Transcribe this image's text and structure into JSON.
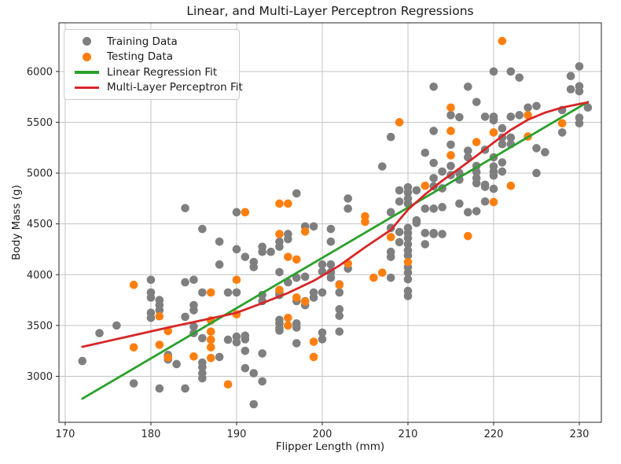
{
  "chart_data": {
    "type": "scatter",
    "title": "Linear, and Multi-Layer Perceptron Regressions",
    "xlabel": "Flipper Length (mm)",
    "ylabel": "Body Mass (g)",
    "xlim": [
      169.27,
      232.57
    ],
    "ylim": [
      2547,
      6479
    ],
    "xticks": [
      170,
      180,
      190,
      200,
      210,
      220,
      230
    ],
    "yticks": [
      3000,
      3500,
      4000,
      4500,
      5000,
      5500,
      6000
    ],
    "grid": true,
    "legend_position": "upper-left",
    "style": {
      "grid_color": "#c3c3c3",
      "axis_color": "#262626",
      "background": "#ffffff",
      "marker_radius": 5.3,
      "line_width": 2.8
    },
    "series": [
      {
        "name": "Training Data",
        "kind": "scatter",
        "color": "#7f7f7f",
        "points": [
          [
            172,
            3150
          ],
          [
            174,
            3425
          ],
          [
            176,
            3500
          ],
          [
            178,
            2930
          ],
          [
            181,
            2880
          ],
          [
            184,
            2880
          ],
          [
            186,
            3030
          ],
          [
            186,
            2980
          ],
          [
            192,
            2725
          ],
          [
            193,
            2950
          ],
          [
            182,
            3210
          ],
          [
            182,
            3165
          ],
          [
            183,
            3120
          ],
          [
            186,
            3135
          ],
          [
            186,
            3090
          ],
          [
            188,
            3190
          ],
          [
            186,
            3375
          ],
          [
            189,
            3360
          ],
          [
            190,
            3390
          ],
          [
            190,
            3335
          ],
          [
            191,
            3400
          ],
          [
            191,
            3365
          ],
          [
            191,
            3250
          ],
          [
            191,
            3080
          ],
          [
            192,
            3030
          ],
          [
            193,
            3225
          ],
          [
            180,
            3950
          ],
          [
            184,
            3925
          ],
          [
            185,
            3950
          ],
          [
            186,
            3825
          ],
          [
            189,
            3825
          ],
          [
            190,
            3825
          ],
          [
            180,
            3825
          ],
          [
            180,
            3775
          ],
          [
            181,
            3750
          ],
          [
            181,
            3700
          ],
          [
            181,
            3650
          ],
          [
            180,
            3625
          ],
          [
            180,
            3575
          ],
          [
            184,
            3585
          ],
          [
            185,
            3700
          ],
          [
            185,
            3650
          ],
          [
            185,
            3490
          ],
          [
            185,
            3425
          ],
          [
            184,
            4655
          ],
          [
            186,
            4450
          ],
          [
            188,
            4325
          ],
          [
            190,
            4250
          ],
          [
            188,
            4100
          ],
          [
            190,
            4615
          ],
          [
            191,
            4175
          ],
          [
            192,
            4125
          ],
          [
            192,
            4075
          ],
          [
            193,
            4275
          ],
          [
            193,
            4225
          ],
          [
            194,
            4225
          ],
          [
            195,
            4325
          ],
          [
            195,
            4275
          ],
          [
            195,
            4025
          ],
          [
            196,
            4400
          ],
          [
            196,
            4350
          ],
          [
            196,
            3925
          ],
          [
            193,
            3800
          ],
          [
            193,
            3740
          ],
          [
            195,
            3825
          ],
          [
            195,
            3800
          ],
          [
            195,
            3555
          ],
          [
            195,
            3520
          ],
          [
            195,
            3475
          ],
          [
            195,
            3450
          ],
          [
            197,
            3740
          ],
          [
            198,
            3740
          ],
          [
            198,
            3700
          ],
          [
            197,
            3520
          ],
          [
            197,
            3480
          ],
          [
            197,
            3325
          ],
          [
            197,
            3970
          ],
          [
            198,
            3980
          ],
          [
            199,
            3825
          ],
          [
            199,
            3775
          ],
          [
            200,
            3825
          ],
          [
            197,
            4800
          ],
          [
            198,
            4475
          ],
          [
            199,
            4475
          ],
          [
            200,
            4100
          ],
          [
            200,
            4030
          ],
          [
            201,
            4100
          ],
          [
            201,
            4020
          ],
          [
            201,
            3970
          ],
          [
            203,
            4060
          ],
          [
            200,
            3430
          ],
          [
            200,
            3365
          ],
          [
            202,
            3905
          ],
          [
            202,
            3825
          ],
          [
            202,
            3660
          ],
          [
            202,
            3595
          ],
          [
            202,
            3440
          ],
          [
            201,
            4450
          ],
          [
            201,
            4325
          ],
          [
            201,
            4025
          ],
          [
            203,
            4750
          ],
          [
            203,
            4650
          ],
          [
            207,
            5065
          ],
          [
            208,
            5355
          ],
          [
            208,
            4615
          ],
          [
            208,
            4460
          ],
          [
            208,
            4225
          ],
          [
            208,
            4175
          ],
          [
            208,
            3970
          ],
          [
            209,
            4830
          ],
          [
            209,
            4720
          ],
          [
            209,
            4420
          ],
          [
            209,
            4320
          ],
          [
            210,
            4860
          ],
          [
            210,
            4810
          ],
          [
            210,
            4750
          ],
          [
            210,
            4700
          ],
          [
            210,
            4460
          ],
          [
            210,
            4410
          ],
          [
            210,
            4360
          ],
          [
            210,
            4300
          ],
          [
            210,
            4240
          ],
          [
            210,
            4190
          ],
          [
            210,
            4075
          ],
          [
            210,
            4020
          ],
          [
            210,
            3955
          ],
          [
            210,
            3840
          ],
          [
            210,
            3790
          ],
          [
            211,
            4830
          ],
          [
            211,
            4535
          ],
          [
            211,
            4510
          ],
          [
            212,
            5200
          ],
          [
            212,
            4650
          ],
          [
            212,
            4410
          ],
          [
            212,
            4300
          ],
          [
            213,
            5415
          ],
          [
            213,
            5100
          ],
          [
            213,
            4950
          ],
          [
            213,
            4870
          ],
          [
            213,
            4650
          ],
          [
            213,
            4410
          ],
          [
            213,
            4400
          ],
          [
            214,
            5015
          ],
          [
            214,
            4850
          ],
          [
            214,
            4665
          ],
          [
            214,
            4400
          ],
          [
            215,
            5570
          ],
          [
            216,
            5550
          ],
          [
            215,
            5280
          ],
          [
            215,
            5070
          ],
          [
            215,
            4980
          ],
          [
            216,
            5000
          ],
          [
            216,
            4935
          ],
          [
            216,
            4700
          ],
          [
            217,
            5220
          ],
          [
            217,
            5155
          ],
          [
            217,
            4615
          ],
          [
            213,
            5850
          ],
          [
            217,
            5850
          ],
          [
            218,
            5700
          ],
          [
            218,
            5070
          ],
          [
            218,
            5010
          ],
          [
            218,
            4950
          ],
          [
            218,
            4900
          ],
          [
            218,
            4625
          ],
          [
            219,
            4885
          ],
          [
            219,
            4865
          ],
          [
            219,
            4720
          ],
          [
            220,
            4845
          ],
          [
            220,
            6000
          ],
          [
            222,
            6000
          ],
          [
            223,
            5940
          ],
          [
            229,
            5955
          ],
          [
            230,
            6050
          ],
          [
            229,
            5825
          ],
          [
            230,
            5855
          ],
          [
            230,
            5805
          ],
          [
            219,
            5555
          ],
          [
            220,
            5555
          ],
          [
            220,
            5520
          ],
          [
            222,
            5555
          ],
          [
            223,
            5570
          ],
          [
            224,
            5645
          ],
          [
            225,
            5660
          ],
          [
            228,
            5620
          ],
          [
            230,
            5545
          ],
          [
            230,
            5490
          ],
          [
            231,
            5645
          ],
          [
            228,
            5400
          ],
          [
            221,
            5440
          ],
          [
            221,
            5350
          ],
          [
            222,
            5350
          ],
          [
            221,
            5285
          ],
          [
            222,
            5285
          ],
          [
            225,
            5245
          ],
          [
            226,
            5205
          ],
          [
            219,
            5230
          ],
          [
            220,
            5155
          ],
          [
            221,
            5105
          ],
          [
            220,
            5065
          ],
          [
            220,
            5015
          ],
          [
            221,
            5015
          ],
          [
            220,
            4975
          ],
          [
            225,
            5000
          ]
        ]
      },
      {
        "name": "Testing Data",
        "kind": "scatter",
        "color": "#ff7f0e",
        "points": [
          [
            178,
            3900
          ],
          [
            178,
            3285
          ],
          [
            181,
            3590
          ],
          [
            181,
            3310
          ],
          [
            182,
            3445
          ],
          [
            182,
            3185
          ],
          [
            185,
            3195
          ],
          [
            187,
            3825
          ],
          [
            187,
            3550
          ],
          [
            187,
            3440
          ],
          [
            187,
            3360
          ],
          [
            187,
            3285
          ],
          [
            187,
            3180
          ],
          [
            189,
            2920
          ],
          [
            190,
            3610
          ],
          [
            190,
            3950
          ],
          [
            191,
            4615
          ],
          [
            195,
            3850
          ],
          [
            196,
            3575
          ],
          [
            196,
            3500
          ],
          [
            197,
            3775
          ],
          [
            198,
            3735
          ],
          [
            199,
            3340
          ],
          [
            199,
            3190
          ],
          [
            202,
            3900
          ],
          [
            203,
            4110
          ],
          [
            195,
            4400
          ],
          [
            198,
            4425
          ],
          [
            196,
            4175
          ],
          [
            197,
            4150
          ],
          [
            195,
            4700
          ],
          [
            196,
            4700
          ],
          [
            205,
            4575
          ],
          [
            205,
            4520
          ],
          [
            206,
            3970
          ],
          [
            207,
            4020
          ],
          [
            208,
            4370
          ],
          [
            210,
            4125
          ],
          [
            209,
            5500
          ],
          [
            212,
            4875
          ],
          [
            215,
            5645
          ],
          [
            215,
            5415
          ],
          [
            215,
            5175
          ],
          [
            217,
            4380
          ],
          [
            218,
            5305
          ],
          [
            220,
            5400
          ],
          [
            224,
            5570
          ],
          [
            224,
            5360
          ],
          [
            228,
            5490
          ],
          [
            222,
            4875
          ],
          [
            220,
            4715
          ],
          [
            221,
            6300
          ]
        ]
      },
      {
        "name": "Linear Regression Fit",
        "kind": "line",
        "color": "#2ca02c",
        "points": [
          [
            172,
            2780
          ],
          [
            231,
            5700
          ]
        ]
      },
      {
        "name": "Multi-Layer Perceptron Fit",
        "kind": "line",
        "color": "#d62728",
        "points": [
          [
            172,
            3290
          ],
          [
            177,
            3385
          ],
          [
            182,
            3480
          ],
          [
            187,
            3570
          ],
          [
            190,
            3625
          ],
          [
            193,
            3720
          ],
          [
            196,
            3820
          ],
          [
            199,
            3940
          ],
          [
            202,
            4090
          ],
          [
            205,
            4270
          ],
          [
            208,
            4440
          ],
          [
            210,
            4640
          ],
          [
            212,
            4790
          ],
          [
            214,
            4925
          ],
          [
            216,
            5045
          ],
          [
            218,
            5170
          ],
          [
            220,
            5300
          ],
          [
            222,
            5425
          ],
          [
            224,
            5525
          ],
          [
            226,
            5595
          ],
          [
            228,
            5645
          ],
          [
            230,
            5680
          ],
          [
            231,
            5695
          ]
        ]
      }
    ]
  }
}
